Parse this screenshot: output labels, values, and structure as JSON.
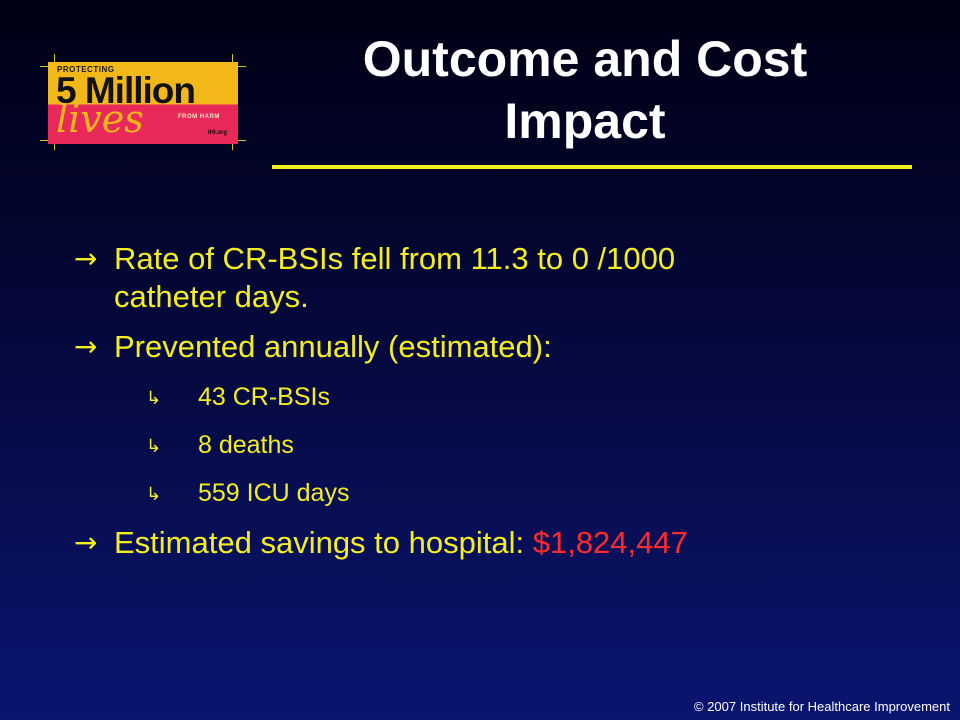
{
  "logo": {
    "protecting": "PROTECTING",
    "million": "5 Million",
    "lives": "lives",
    "from_harm": "FROM HARM",
    "ihi": "IHI.org"
  },
  "title": {
    "line1": "Outcome and Cost",
    "line2": "Impact"
  },
  "bullets": {
    "item1": {
      "line1": "Rate of CR-BSIs fell from 11.3 to 0 /1000",
      "line2": "catheter days."
    },
    "item2": {
      "text": "Prevented annually (estimated):",
      "subitems": [
        "43 CR-BSIs",
        "8 deaths",
        "559 ICU days"
      ]
    },
    "item3": {
      "text": "Estimated savings to hospital: ",
      "amount": "$1,824,447"
    }
  },
  "footer": "© 2007 Institute for Healthcare Improvement",
  "colors": {
    "bullet_text": "#f5ee1e",
    "amount": "#ff2a2a",
    "title": "#ffffff",
    "rule": "#f2ee1e"
  }
}
